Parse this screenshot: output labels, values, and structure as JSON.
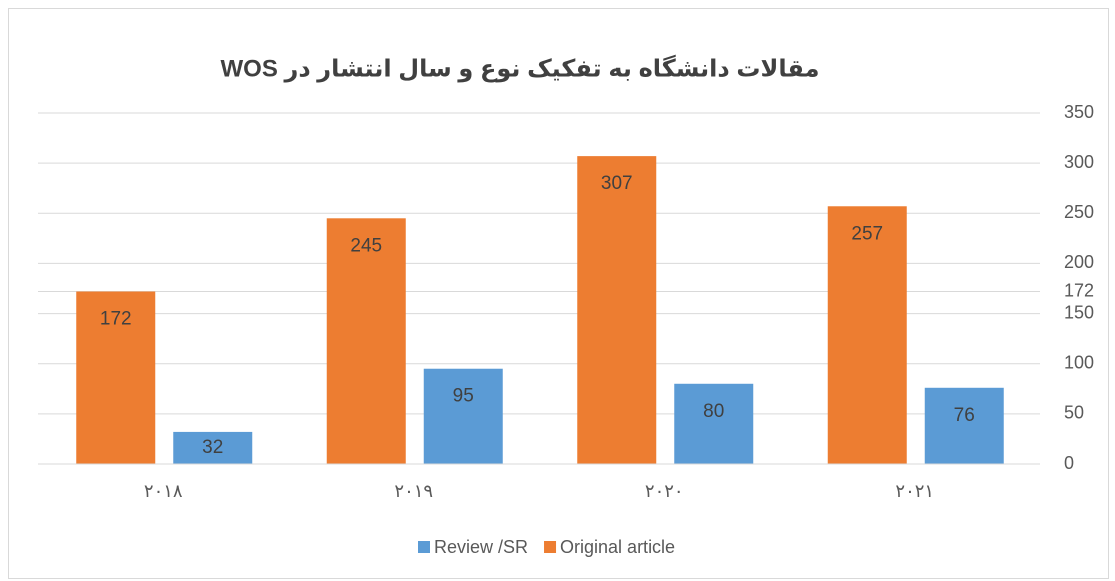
{
  "chart_data": {
    "type": "bar",
    "title": "مقالات دانشگاه به تفکیک نوع و سال انتشار در WOS",
    "categories": [
      "۲۰۱۸",
      "۲۰۱۹",
      "۲۰۲۰",
      "۲۰۲۱"
    ],
    "series": [
      {
        "name": "Review /SR",
        "color": "#5b9bd5",
        "values": [
          32,
          95,
          80,
          76
        ]
      },
      {
        "name": "Original article",
        "color": "#ed7d31",
        "values": [
          172,
          245,
          307,
          257
        ]
      }
    ],
    "ylim": [
      0,
      350
    ],
    "yticks": [
      0,
      50,
      100,
      150,
      172,
      200,
      250,
      300,
      350
    ],
    "grid": true,
    "legend": "bottom"
  }
}
